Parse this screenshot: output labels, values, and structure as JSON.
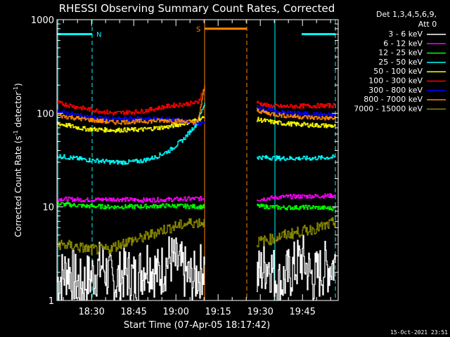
{
  "chart_data": {
    "type": "line",
    "title": "RHESSI Observing Summary Count Rates, Corrected",
    "xlabel": "Start Time (07-Apr-05 18:17:42)",
    "ylabel_parts": [
      "Corrected Count Rate (s",
      "-1",
      " detector",
      "-1",
      ")"
    ],
    "x_unit": "minutes after 18:17:42",
    "xlim": [
      0,
      100
    ],
    "ylim": [
      1,
      1000
    ],
    "yscale": "log",
    "x_ticks": [
      {
        "value": 12.3,
        "label": "18:30"
      },
      {
        "value": 27.3,
        "label": "18:45"
      },
      {
        "value": 42.3,
        "label": "19:00"
      },
      {
        "value": 57.3,
        "label": "19:15"
      },
      {
        "value": 72.3,
        "label": "19:30"
      },
      {
        "value": 87.3,
        "label": "19:45"
      }
    ],
    "y_ticks": [
      {
        "value": 1,
        "label": "1"
      },
      {
        "value": 10,
        "label": "10"
      },
      {
        "value": 100,
        "label": "100"
      },
      {
        "value": 1000,
        "label": "1000"
      }
    ],
    "legend_header": [
      "Det 1,3,4,5,6,9,",
      "Att 0"
    ],
    "legend_position": "right",
    "series": [
      {
        "name": "3 - 6 keV",
        "color": "#ffffff",
        "segments": [
          {
            "x": [
              0,
              4,
              8,
              12,
              16,
              20,
              24,
              28,
              32,
              36,
              40,
              44,
              48,
              52.5
            ],
            "y": [
              1.6,
              2.2,
              1.4,
              1.8,
              2.4,
              1.5,
              2.0,
              1.7,
              2.6,
              1.9,
              2.8,
              2.2,
              1.6,
              2.4
            ]
          },
          {
            "x": [
              71,
              75,
              79,
              83,
              87,
              91,
              95,
              99
            ],
            "y": [
              1.8,
              2.6,
              1.5,
              2.0,
              2.8,
              1.7,
              2.2,
              2.5
            ]
          }
        ]
      },
      {
        "name": "6 - 12 keV",
        "color": "#ff00ff",
        "segments": [
          {
            "x": [
              0,
              10,
              20,
              30,
              40,
              52.5
            ],
            "y": [
              12.2,
              11.9,
              12.1,
              11.8,
              12.0,
              12.3
            ]
          },
          {
            "x": [
              71,
              80,
              90,
              99
            ],
            "y": [
              12.0,
              12.8,
              13.0,
              13.2
            ]
          }
        ]
      },
      {
        "name": "12 - 25 keV",
        "color": "#00ff00",
        "segments": [
          {
            "x": [
              0,
              10,
              20,
              30,
              40,
              52.5
            ],
            "y": [
              10.8,
              10.2,
              10.0,
              10.1,
              10.3,
              10.0
            ]
          },
          {
            "x": [
              71,
              80,
              90,
              99
            ],
            "y": [
              10.2,
              9.8,
              9.9,
              9.6
            ]
          }
        ]
      },
      {
        "name": "25 - 50 keV",
        "color": "#00ffff",
        "segments": [
          {
            "x": [
              0,
              10,
              20,
              25,
              30,
              35,
              40,
              45,
              50,
              52.5
            ],
            "y": [
              35,
              32,
              30,
              30,
              31,
              34,
              40,
              53,
              80,
              130
            ]
          },
          {
            "x": [
              71,
              80,
              90,
              99
            ],
            "y": [
              34,
              33,
              33,
              34
            ]
          }
        ]
      },
      {
        "name": "50 - 100 keV",
        "color": "#ffff00",
        "segments": [
          {
            "x": [
              0,
              10,
              20,
              30,
              40,
              50,
              52.5
            ],
            "y": [
              78,
              68,
              66,
              67,
              72,
              85,
              90
            ]
          },
          {
            "x": [
              71,
              75,
              80,
              90,
              99
            ],
            "y": [
              86,
              82,
              78,
              75,
              73
            ]
          }
        ]
      },
      {
        "name": "100 - 300 keV",
        "color": "#ff0000",
        "segments": [
          {
            "x": [
              0,
              10,
              20,
              30,
              40,
              50,
              52.5
            ],
            "y": [
              130,
              112,
              100,
              105,
              120,
              130,
              190
            ]
          },
          {
            "x": [
              71,
              75,
              80,
              90,
              99
            ],
            "y": [
              130,
              120,
              118,
              120,
              121
            ]
          }
        ]
      },
      {
        "name": "300 - 800 keV",
        "color": "#0000ff",
        "segments": [
          {
            "x": [
              0,
              10,
              20,
              30,
              40,
              50,
              52.5
            ],
            "y": [
              105,
              92,
              86,
              88,
              86,
              78,
              78
            ]
          },
          {
            "x": [
              71,
              75,
              80,
              90,
              99
            ],
            "y": [
              118,
              108,
              102,
              98,
              95
            ]
          }
        ]
      },
      {
        "name": "800 - 7000 keV",
        "color": "#ff8800",
        "segments": [
          {
            "x": [
              0,
              10,
              20,
              30,
              40,
              50,
              52.5
            ],
            "y": [
              95,
              86,
              80,
              82,
              84,
              80,
              200
            ]
          },
          {
            "x": [
              71,
              75,
              80,
              90,
              99
            ],
            "y": [
              108,
              100,
              95,
              90,
              88
            ]
          }
        ]
      },
      {
        "name": "7000 - 15000 keV",
        "color": "#888800",
        "segments": [
          {
            "x": [
              0,
              6,
              12,
              18,
              24,
              30,
              36,
              42,
              48,
              52.5
            ],
            "y": [
              4.0,
              3.8,
              3.5,
              3.5,
              4.2,
              4.6,
              5.5,
              6.2,
              6.8,
              6.8
            ]
          },
          {
            "x": [
              71,
              76,
              81,
              86,
              91,
              96,
              99
            ],
            "y": [
              4.2,
              4.5,
              5.0,
              5.4,
              5.8,
              6.3,
              6.9
            ]
          }
        ]
      }
    ],
    "flags": [
      {
        "label": "N",
        "color": "#00ffff",
        "x": [
          0,
          12.5
        ],
        "y": 700
      },
      {
        "label": "S",
        "color": "#ff8800",
        "x": [
          52.5,
          67.5
        ],
        "y": 800
      },
      {
        "label": "",
        "color": "#00ffff",
        "x": [
          87,
          99
        ],
        "y": 700
      }
    ],
    "markers": [
      {
        "x": 0.3,
        "color": "#00ffff",
        "style": "solid"
      },
      {
        "x": 12.5,
        "color": "#00ffff",
        "style": "dashed"
      },
      {
        "x": 52.5,
        "color": "#ff8800",
        "style": "solid"
      },
      {
        "x": 67.5,
        "color": "#ff8800",
        "style": "dashed"
      },
      {
        "x": 77.5,
        "color": "#00ffff",
        "style": "solid"
      },
      {
        "x": 99,
        "color": "#00ffff",
        "style": "dashed"
      }
    ],
    "footer": "15-Oct-2021 23:51"
  }
}
